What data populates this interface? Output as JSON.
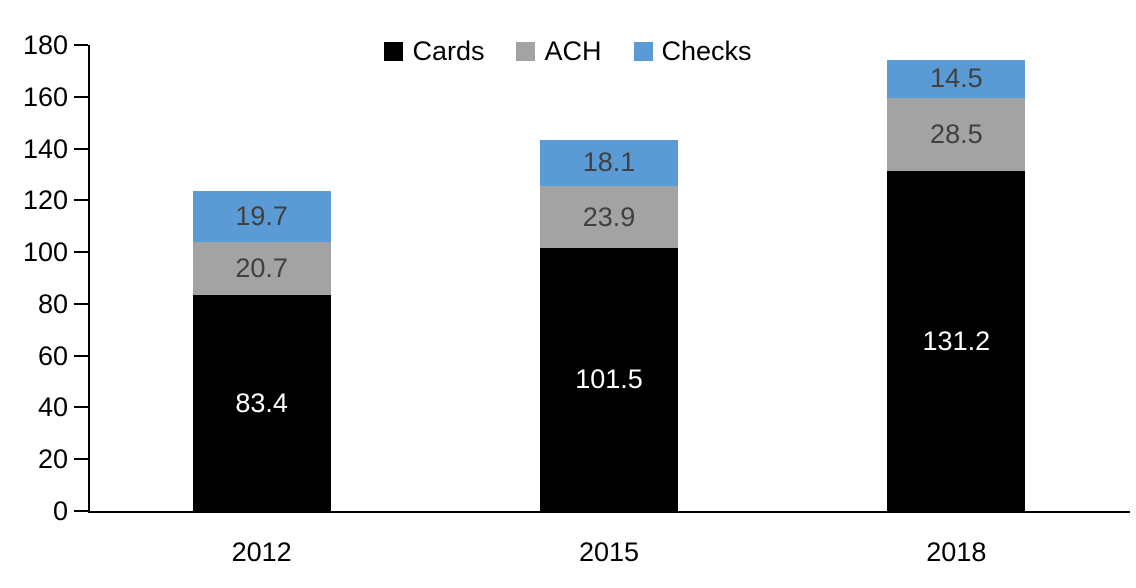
{
  "chart_data": {
    "type": "bar",
    "stacked": true,
    "title": "",
    "xlabel": "",
    "ylabel": "",
    "categories": [
      "2012",
      "2015",
      "2018"
    ],
    "series": [
      {
        "name": "Cards",
        "color": "#000000",
        "label_color": "#ffffff",
        "values": [
          83.4,
          101.5,
          131.2
        ]
      },
      {
        "name": "ACH",
        "color": "#a3a3a3",
        "label_color": "#404040",
        "values": [
          20.7,
          23.9,
          28.5
        ]
      },
      {
        "name": "Checks",
        "color": "#5b9bd5",
        "label_color": "#404040",
        "values": [
          19.7,
          18.1,
          14.5
        ]
      }
    ],
    "totals": [
      123.8,
      143.5,
      174.2
    ],
    "ylim": [
      0,
      180
    ],
    "yticks": [
      0,
      20,
      40,
      60,
      80,
      100,
      120,
      140,
      160,
      180
    ],
    "grid": false,
    "legend_position": "top-center",
    "data_labels": true,
    "axis_color": "#000000",
    "background_color": "#ffffff"
  }
}
